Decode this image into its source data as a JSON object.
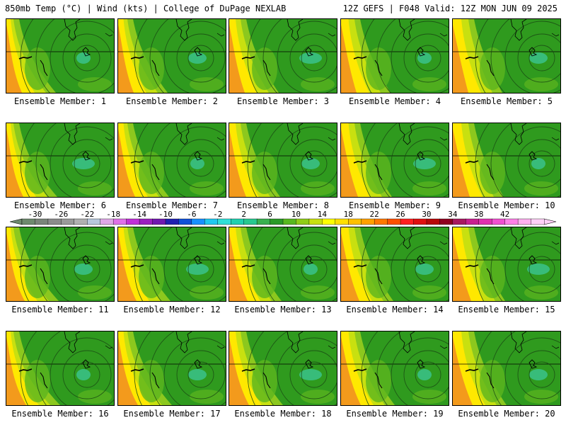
{
  "header": {
    "title_left": "850mb Temp (°C) | Wind (kts) | College of DuPage NEXLAB",
    "title_right": "12Z GEFS | F048 Valid: 12Z MON JUN 09 2025"
  },
  "panel_label_prefix": "Ensemble Member: ",
  "members": [
    1,
    2,
    3,
    4,
    5,
    6,
    7,
    8,
    9,
    10,
    11,
    12,
    13,
    14,
    15,
    16,
    17,
    18,
    19,
    20
  ],
  "colorbar": {
    "tick_labels": [
      "-30",
      "-26",
      "-22",
      "-18",
      "-14",
      "-10",
      "-6",
      "-2",
      "2",
      "6",
      "10",
      "14",
      "18",
      "22",
      "26",
      "30",
      "34",
      "38",
      "42"
    ],
    "colors": [
      "#6e8a6e",
      "#7a857a",
      "#8c8c8c",
      "#9a9a9a",
      "#b0b0b0",
      "#b8c8dc",
      "#e0a8e8",
      "#e070e8",
      "#c030d8",
      "#9a20c0",
      "#7018b0",
      "#2020b0",
      "#1050d8",
      "#1890ff",
      "#20c8f0",
      "#30e0d8",
      "#20d0b0",
      "#28c890",
      "#38b050",
      "#2a9a28",
      "#58b820",
      "#90cc18",
      "#c8e010",
      "#ffff00",
      "#ffe000",
      "#ffc000",
      "#ffa000",
      "#ff7800",
      "#ff5000",
      "#ff2020",
      "#e01010",
      "#b80808",
      "#900020",
      "#a81860",
      "#c82090",
      "#e030b0",
      "#f050d0",
      "#ff80e8",
      "#ffb0f0",
      "#ffd0f8"
    ]
  },
  "map_colors": {
    "warm_orange": "#f39a1c",
    "yellow": "#ffe800",
    "yellow_green": "#c8e010",
    "light_green": "#8cc81e",
    "mid_green": "#5cb51e",
    "dark_green": "#2f9a1e",
    "cyan_green": "#3cc79a"
  }
}
